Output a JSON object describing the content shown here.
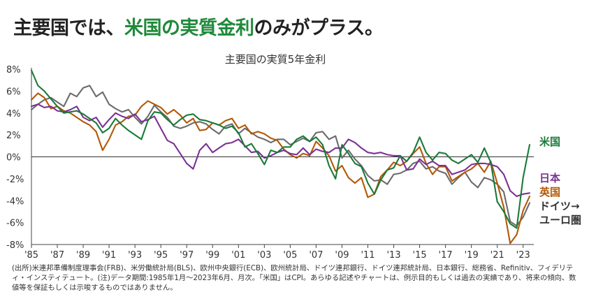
{
  "headline": {
    "prefix": "主要国では、",
    "highlight": "米国の実質金利",
    "suffix": "のみがプラス。"
  },
  "footnote": "(出所)米連邦準備制度理事会(FRB)、米労働統計局(BLS)、欧州中央銀行(ECB)、欧州統計局、ドイツ連邦銀行、ドイツ連邦統計局、日本銀行、総務省、Refinitiv、フィデリティ・インスティテュート。(注)データ期間:1985年1月～2023年6月、月次。「米国」はCPI。あらゆる記述やチャートは、例示目的もしくは過去の実績であり、将来の傾向、数値等を保証もしくは示唆するものではありません。",
  "colors": {
    "us": "#1a7a3a",
    "japan": "#7b3294",
    "uk": "#b35806",
    "germany": "#6b6b6b",
    "headline_accent": "#1f8a3b"
  },
  "chart_data": {
    "type": "line",
    "title": "主要国の実質5年金利",
    "xlabel": "",
    "ylabel": "",
    "xlim": [
      1985,
      2023.5
    ],
    "ylim": [
      -8,
      8
    ],
    "y_ticks": [
      8,
      6,
      4,
      2,
      0,
      -2,
      -4,
      -6,
      -8
    ],
    "y_tick_labels": [
      "8%",
      "6%",
      "4%",
      "2%",
      "0%",
      "-2%",
      "-4%",
      "-6%",
      "-8%"
    ],
    "x_ticks": [
      1985,
      1987,
      1989,
      1991,
      1993,
      1995,
      1997,
      1999,
      2001,
      2003,
      2005,
      2007,
      2009,
      2011,
      2013,
      2015,
      2017,
      2019,
      2021,
      2023
    ],
    "x_tick_labels": [
      "'85",
      "'87",
      "'89",
      "'91",
      "'93",
      "'95",
      "'97",
      "'99",
      "'01",
      "'03",
      "'05",
      "'07",
      "'09",
      "'11",
      "'13",
      "'15",
      "'17",
      "'19",
      "'21",
      "'23"
    ],
    "series": [
      {
        "name": "米国",
        "label": "米国",
        "x": [
          1985,
          1985.5,
          1986,
          1986.5,
          1987,
          1987.5,
          1988,
          1988.5,
          1989,
          1989.5,
          1990,
          1990.5,
          1991,
          1991.5,
          1992,
          1992.5,
          1993,
          1993.5,
          1994,
          1994.5,
          1995,
          1995.5,
          1996,
          1996.5,
          1997,
          1997.5,
          1998,
          1998.5,
          1999,
          1999.5,
          2000,
          2000.5,
          2001,
          2001.5,
          2002,
          2002.5,
          2003,
          2003.5,
          2004,
          2004.5,
          2005,
          2005.5,
          2006,
          2006.5,
          2007,
          2007.5,
          2008,
          2008.5,
          2009,
          2009.5,
          2010,
          2010.5,
          2011,
          2011.5,
          2012,
          2012.5,
          2013,
          2013.5,
          2014,
          2014.5,
          2015,
          2015.5,
          2016,
          2016.5,
          2017,
          2017.5,
          2018,
          2018.5,
          2019,
          2019.5,
          2020,
          2020.5,
          2021,
          2021.5,
          2022,
          2022.5,
          2023,
          2023.5
        ],
        "values": [
          7.9,
          6.5,
          6.0,
          5.3,
          4.6,
          4.0,
          4.1,
          4.2,
          3.9,
          3.5,
          3.1,
          2.2,
          2.6,
          3.5,
          2.9,
          2.4,
          2.0,
          1.6,
          3.3,
          4.1,
          4.0,
          3.4,
          2.9,
          3.4,
          3.8,
          3.9,
          3.4,
          3.3,
          3.1,
          2.9,
          2.6,
          2.8,
          2.2,
          0.9,
          1.2,
          0.3,
          -0.7,
          0.6,
          0.4,
          0.9,
          0.9,
          1.6,
          1.9,
          1.4,
          1.8,
          1.1,
          -0.8,
          -2.0,
          1.1,
          0.3,
          -0.6,
          -0.9,
          -2.4,
          -3.4,
          -2.1,
          -1.2,
          -1.0,
          0.1,
          -0.4,
          0.4,
          1.8,
          0.4,
          -0.3,
          0.4,
          0.3,
          -0.3,
          -0.6,
          -0.2,
          0.2,
          -0.5,
          0.8,
          -0.5,
          -4.1,
          -5.0,
          -6.1,
          -6.5,
          -1.9,
          1.1
        ]
      },
      {
        "name": "日本",
        "label": "日本",
        "x": [
          1985,
          1985.5,
          1986,
          1986.5,
          1987,
          1987.5,
          1988,
          1988.5,
          1989,
          1989.5,
          1990,
          1990.5,
          1991,
          1991.5,
          1992,
          1992.5,
          1993,
          1993.5,
          1994,
          1994.5,
          1995,
          1995.5,
          1996,
          1996.5,
          1997,
          1997.5,
          1998,
          1998.5,
          1999,
          1999.5,
          2000,
          2000.5,
          2001,
          2001.5,
          2002,
          2002.5,
          2003,
          2003.5,
          2004,
          2004.5,
          2005,
          2005.5,
          2006,
          2006.5,
          2007,
          2007.5,
          2008,
          2008.5,
          2009,
          2009.5,
          2010,
          2010.5,
          2011,
          2011.5,
          2012,
          2012.5,
          2013,
          2013.5,
          2014,
          2014.5,
          2015,
          2015.5,
          2016,
          2016.5,
          2017,
          2017.5,
          2018,
          2018.5,
          2019,
          2019.5,
          2020,
          2020.5,
          2021,
          2021.5,
          2022,
          2022.5,
          2023,
          2023.5
        ],
        "values": [
          4.6,
          4.8,
          4.5,
          4.6,
          4.2,
          4.1,
          4.3,
          4.6,
          3.6,
          3.3,
          3.6,
          2.7,
          3.4,
          4.0,
          3.7,
          3.5,
          3.9,
          3.2,
          3.4,
          3.7,
          2.6,
          1.5,
          1.2,
          0.3,
          -0.6,
          -1.1,
          0.6,
          1.2,
          0.4,
          0.8,
          1.2,
          1.3,
          1.6,
          1.0,
          0.4,
          0.5,
          -0.1,
          0.1,
          0.4,
          0.6,
          0.3,
          0.2,
          0.8,
          0.2,
          0.7,
          0.5,
          0.4,
          0.8,
          0.8,
          1.6,
          1.3,
          0.8,
          0.4,
          0.3,
          0.4,
          0.2,
          0.1,
          0.1,
          -1.2,
          -1.1,
          -0.2,
          -0.7,
          -0.4,
          -0.8,
          -0.8,
          -1.6,
          -1.4,
          -1.2,
          -0.7,
          -0.6,
          -0.6,
          -0.7,
          -0.9,
          -1.6,
          -3.1,
          -3.6,
          -3.4,
          -3.3
        ]
      },
      {
        "name": "英国",
        "label": "英国",
        "x": [
          1985,
          1985.5,
          1986,
          1986.5,
          1987,
          1987.5,
          1988,
          1988.5,
          1989,
          1989.5,
          1990,
          1990.5,
          1991,
          1991.5,
          1992,
          1992.5,
          1993,
          1993.5,
          1994,
          1994.5,
          1995,
          1995.5,
          1996,
          1996.5,
          1997,
          1997.5,
          1998,
          1998.5,
          1999,
          1999.5,
          2000,
          2000.5,
          2001,
          2001.5,
          2002,
          2002.5,
          2003,
          2003.5,
          2004,
          2004.5,
          2005,
          2005.5,
          2006,
          2006.5,
          2007,
          2007.5,
          2008,
          2008.5,
          2009,
          2009.5,
          2010,
          2010.5,
          2011,
          2011.5,
          2012,
          2012.5,
          2013,
          2013.5,
          2014,
          2014.5,
          2015,
          2015.5,
          2016,
          2016.5,
          2017,
          2017.5,
          2018,
          2018.5,
          2019,
          2019.5,
          2020,
          2020.5,
          2021,
          2021.5,
          2022,
          2022.5,
          2023,
          2023.5
        ],
        "values": [
          5.2,
          5.8,
          5.4,
          4.4,
          4.6,
          4.2,
          4.0,
          3.6,
          3.2,
          2.9,
          2.3,
          0.6,
          1.6,
          2.9,
          3.2,
          3.7,
          3.8,
          4.6,
          5.1,
          4.8,
          4.5,
          3.9,
          4.3,
          3.8,
          3.1,
          3.5,
          2.4,
          2.5,
          3.1,
          2.9,
          3.3,
          3.5,
          2.6,
          2.9,
          2.1,
          2.3,
          2.1,
          1.7,
          1.5,
          0.7,
          0.2,
          -0.1,
          0.3,
          0.1,
          1.4,
          0.8,
          0.1,
          -1.3,
          -0.8,
          -1.9,
          -2.4,
          -1.9,
          -3.7,
          -3.4,
          -1.8,
          -1.2,
          -0.5,
          -0.8,
          -0.4,
          0.3,
          0.9,
          -0.6,
          -1.6,
          -0.9,
          -0.9,
          -2.2,
          -1.8,
          -1.4,
          -1.1,
          -0.6,
          -1.4,
          -0.4,
          -2.4,
          -4.6,
          -7.9,
          -7.1,
          -4.9,
          -3.6
        ]
      },
      {
        "name": "ドイツ→ユーロ圏",
        "label": "ドイツ→",
        "label2": "ユーロ圏",
        "x": [
          1985,
          1985.5,
          1986,
          1986.5,
          1987,
          1987.5,
          1988,
          1988.5,
          1989,
          1989.5,
          1990,
          1990.5,
          1991,
          1991.5,
          1992,
          1992.5,
          1993,
          1993.5,
          1994,
          1994.5,
          1995,
          1995.5,
          1996,
          1996.5,
          1997,
          1997.5,
          1998,
          1998.5,
          1999,
          1999.5,
          2000,
          2000.5,
          2001,
          2001.5,
          2002,
          2002.5,
          2003,
          2003.5,
          2004,
          2004.5,
          2005,
          2005.5,
          2006,
          2006.5,
          2007,
          2007.5,
          2008,
          2008.5,
          2009,
          2009.5,
          2010,
          2010.5,
          2011,
          2011.5,
          2012,
          2012.5,
          2013,
          2013.5,
          2014,
          2014.5,
          2015,
          2015.5,
          2016,
          2016.5,
          2017,
          2017.5,
          2018,
          2018.5,
          2019,
          2019.5,
          2020,
          2020.5,
          2021,
          2021.5,
          2022,
          2022.5,
          2023,
          2023.5
        ],
        "values": [
          4.3,
          4.8,
          5.2,
          5.4,
          5.0,
          4.6,
          5.8,
          5.5,
          6.3,
          6.5,
          5.5,
          5.9,
          4.8,
          4.4,
          4.1,
          4.3,
          3.6,
          3.0,
          3.7,
          4.7,
          4.1,
          3.6,
          2.8,
          2.6,
          2.8,
          3.1,
          3.2,
          3.0,
          2.5,
          2.1,
          2.8,
          3.0,
          2.1,
          2.6,
          2.2,
          1.8,
          1.6,
          1.3,
          1.6,
          1.6,
          1.1,
          1.4,
          1.7,
          1.4,
          2.2,
          2.3,
          1.6,
          1.9,
          -0.1,
          0.6,
          -0.2,
          -0.8,
          -1.7,
          -2.2,
          -2.1,
          -2.5,
          -1.6,
          -1.5,
          -1.2,
          -0.6,
          -0.4,
          -1.1,
          -0.9,
          -1.3,
          -1.5,
          -2.5,
          -1.9,
          -1.4,
          -2.3,
          -2.8,
          -1.9,
          -2.1,
          -2.5,
          -3.2,
          -5.9,
          -6.3,
          -5.5,
          -4.2
        ]
      }
    ]
  }
}
